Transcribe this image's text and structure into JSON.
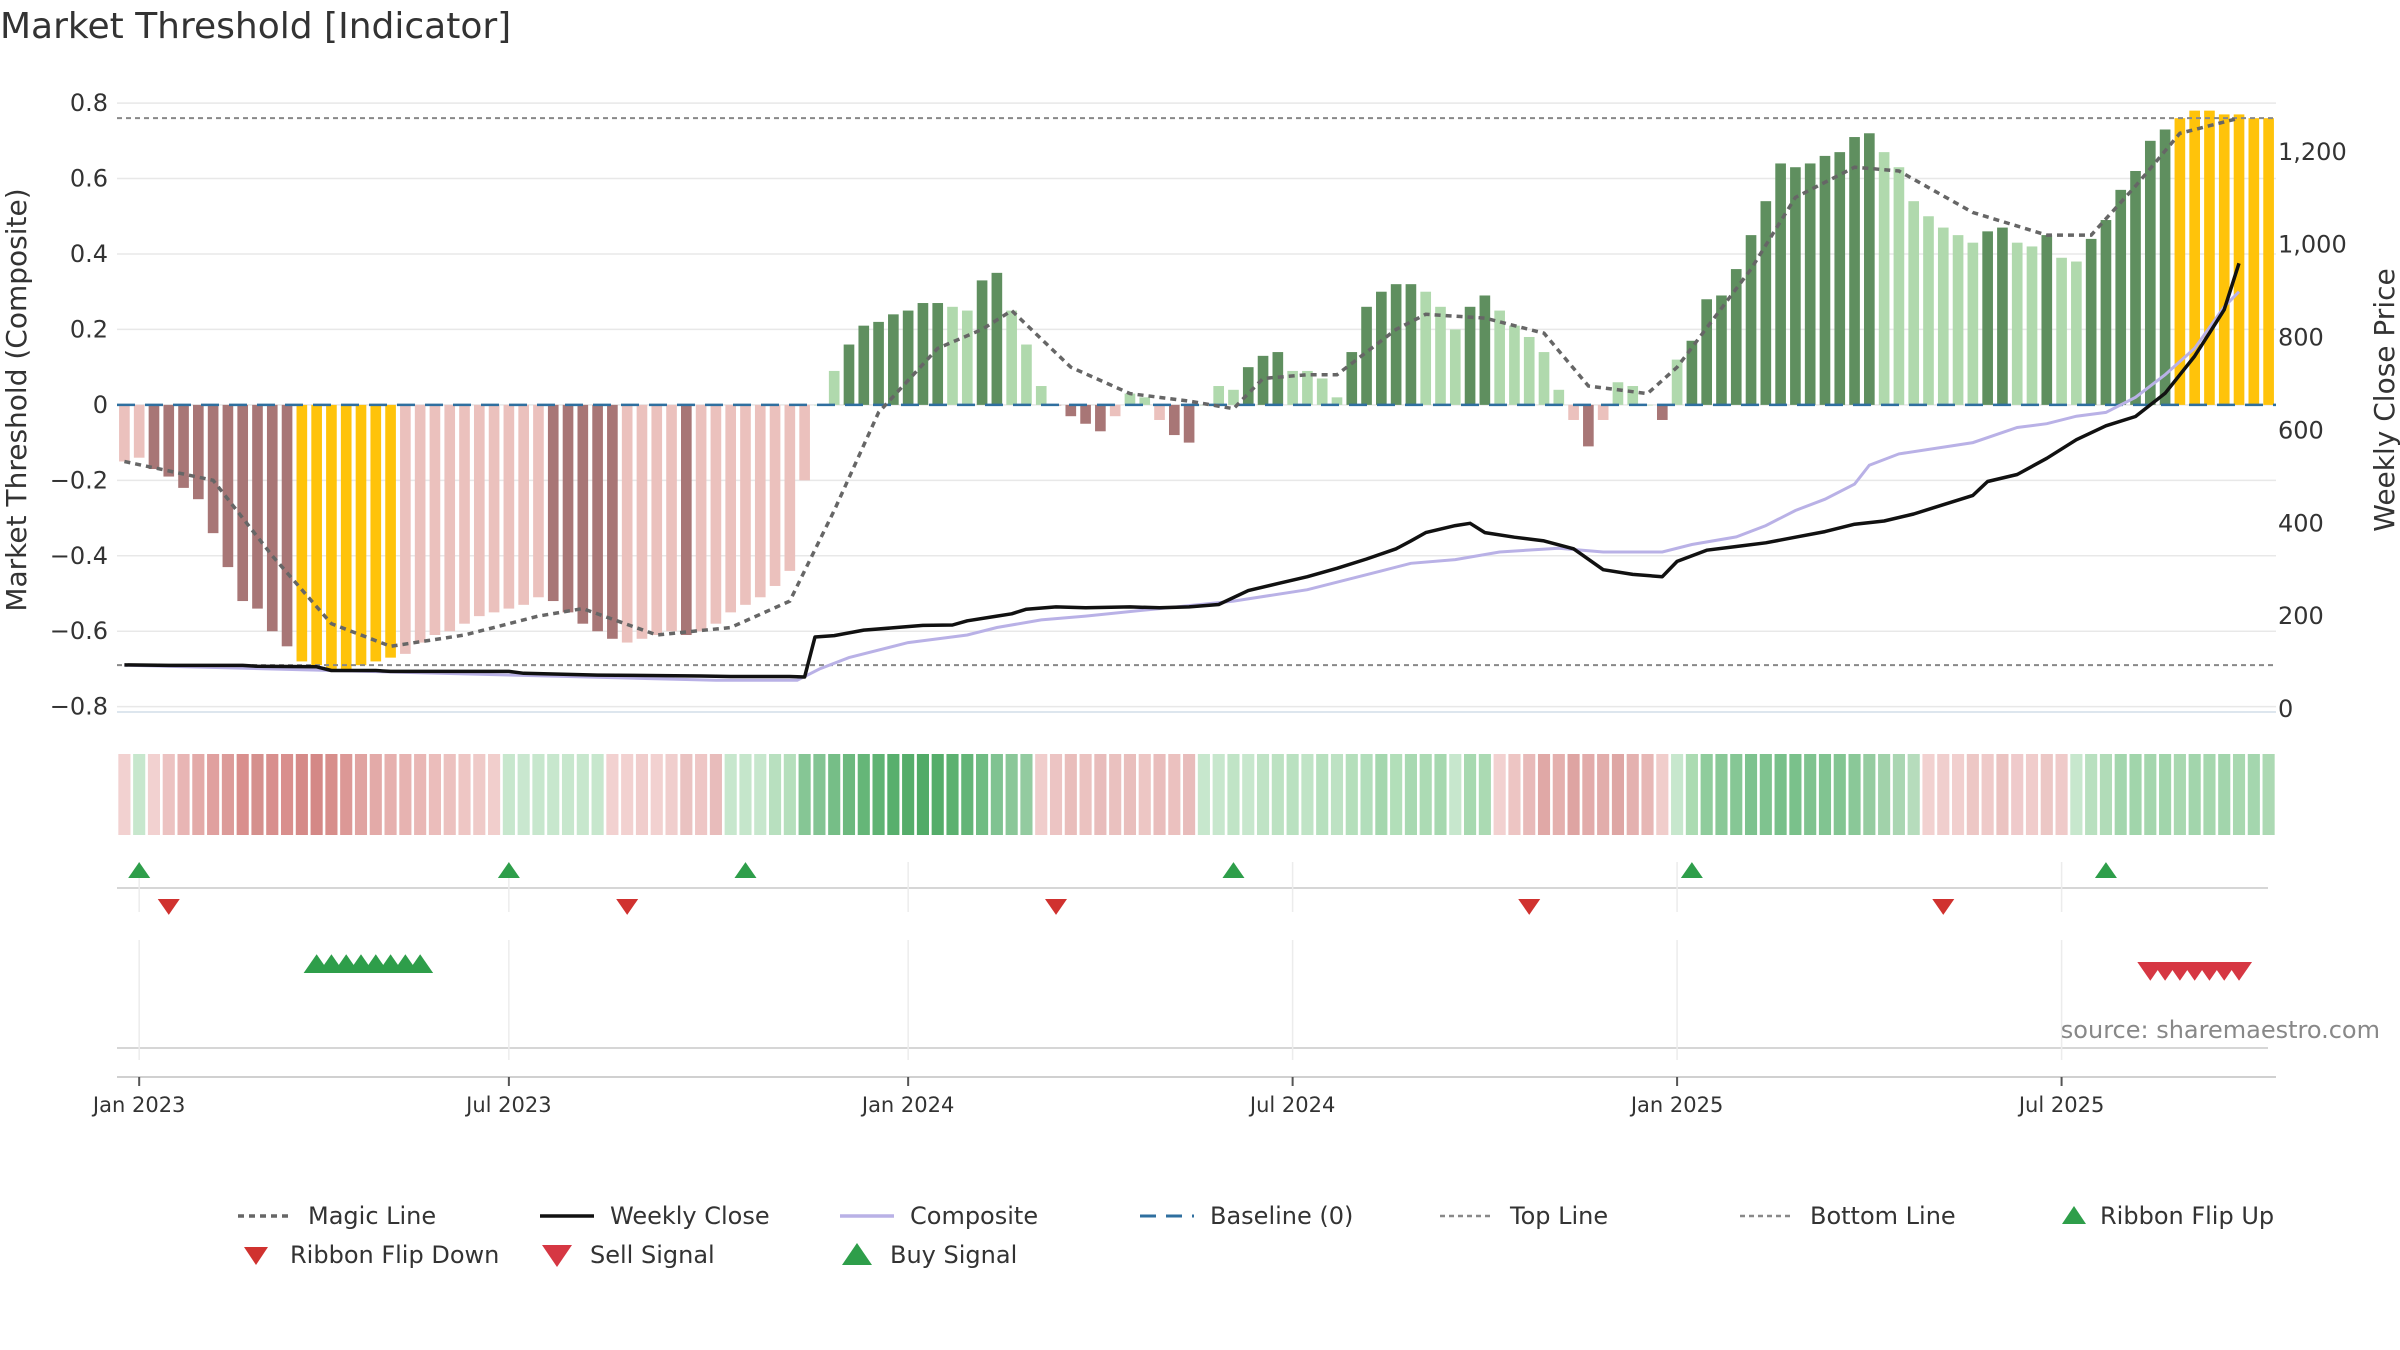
{
  "chart_data": {
    "type": "bar",
    "title": "Market Threshold [Indicator]",
    "ylabel": "Market Threshold (Composite)",
    "y2label": "Weekly Close Price",
    "ylim": [
      -0.83,
      0.84
    ],
    "y2lim": [
      0,
      1260
    ],
    "yticks": [
      0.8,
      0.6,
      0.4,
      0.2,
      0,
      -0.2,
      -0.4,
      -0.6,
      -0.8
    ],
    "ytick_labels": [
      "0.8",
      "0.6",
      "0.4",
      "0.2",
      "0",
      "−0.2",
      "−0.4",
      "−0.6",
      "−0.8"
    ],
    "y2ticks": [
      1200,
      1000,
      800,
      600,
      400,
      200,
      0
    ],
    "y2tick_labels": [
      "1,200",
      "1,000",
      "800",
      "600",
      "400",
      "200",
      "0"
    ],
    "xticks": [
      {
        "week": 1,
        "label": "Jan 2023"
      },
      {
        "week": 26,
        "label": "Jul 2023"
      },
      {
        "week": 53,
        "label": "Jan 2024"
      },
      {
        "week": 79,
        "label": "Jul 2024"
      },
      {
        "week": 105,
        "label": "Jan 2025"
      },
      {
        "week": 131,
        "label": "Jul 2025"
      }
    ],
    "top_line": 0.76,
    "bottom_line": -0.69,
    "baseline": 0,
    "legend_position": "bottom",
    "grid": true,
    "colors": {
      "strong_pos": "#5f8f5f",
      "weak_pos": "#b0d9ad",
      "strong_neg": "#a87676",
      "weak_neg": "#ebc1bd",
      "extreme": "#ffc30a",
      "weekly_close": "#111111",
      "composite": "#b9b1e6",
      "magic": "#666666",
      "baseline": "#2f6f9f",
      "buy": "#2e9e4a",
      "sell": "#d63743"
    },
    "bars": [
      [
        -0.15,
        "weak_neg"
      ],
      [
        -0.14,
        "weak_neg"
      ],
      [
        -0.17,
        "strong_neg"
      ],
      [
        -0.19,
        "strong_neg"
      ],
      [
        -0.22,
        "strong_neg"
      ],
      [
        -0.25,
        "strong_neg"
      ],
      [
        -0.34,
        "strong_neg"
      ],
      [
        -0.43,
        "strong_neg"
      ],
      [
        -0.52,
        "strong_neg"
      ],
      [
        -0.54,
        "strong_neg"
      ],
      [
        -0.6,
        "strong_neg"
      ],
      [
        -0.64,
        "strong_neg"
      ],
      [
        -0.68,
        "extreme"
      ],
      [
        -0.69,
        "extreme"
      ],
      [
        -0.7,
        "extreme"
      ],
      [
        -0.7,
        "extreme"
      ],
      [
        -0.69,
        "extreme"
      ],
      [
        -0.68,
        "extreme"
      ],
      [
        -0.67,
        "extreme"
      ],
      [
        -0.66,
        "weak_neg"
      ],
      [
        -0.63,
        "weak_neg"
      ],
      [
        -0.61,
        "weak_neg"
      ],
      [
        -0.6,
        "weak_neg"
      ],
      [
        -0.58,
        "weak_neg"
      ],
      [
        -0.56,
        "weak_neg"
      ],
      [
        -0.55,
        "weak_neg"
      ],
      [
        -0.54,
        "weak_neg"
      ],
      [
        -0.53,
        "weak_neg"
      ],
      [
        -0.51,
        "weak_neg"
      ],
      [
        -0.52,
        "strong_neg"
      ],
      [
        -0.55,
        "strong_neg"
      ],
      [
        -0.58,
        "strong_neg"
      ],
      [
        -0.6,
        "strong_neg"
      ],
      [
        -0.62,
        "strong_neg"
      ],
      [
        -0.63,
        "weak_neg"
      ],
      [
        -0.62,
        "weak_neg"
      ],
      [
        -0.61,
        "weak_neg"
      ],
      [
        -0.6,
        "weak_neg"
      ],
      [
        -0.61,
        "strong_neg"
      ],
      [
        -0.6,
        "weak_neg"
      ],
      [
        -0.58,
        "weak_neg"
      ],
      [
        -0.55,
        "weak_neg"
      ],
      [
        -0.53,
        "weak_neg"
      ],
      [
        -0.51,
        "weak_neg"
      ],
      [
        -0.48,
        "weak_neg"
      ],
      [
        -0.44,
        "weak_neg"
      ],
      [
        -0.2,
        "weak_neg"
      ],
      [
        0,
        "weak_pos"
      ],
      [
        0.09,
        "weak_pos"
      ],
      [
        0.16,
        "strong_pos"
      ],
      [
        0.21,
        "strong_pos"
      ],
      [
        0.22,
        "strong_pos"
      ],
      [
        0.24,
        "strong_pos"
      ],
      [
        0.25,
        "strong_pos"
      ],
      [
        0.27,
        "strong_pos"
      ],
      [
        0.27,
        "strong_pos"
      ],
      [
        0.26,
        "weak_pos"
      ],
      [
        0.25,
        "weak_pos"
      ],
      [
        0.33,
        "strong_pos"
      ],
      [
        0.35,
        "strong_pos"
      ],
      [
        0.25,
        "weak_pos"
      ],
      [
        0.16,
        "weak_pos"
      ],
      [
        0.05,
        "weak_pos"
      ],
      [
        0,
        "strong_neg"
      ],
      [
        -0.03,
        "strong_neg"
      ],
      [
        -0.05,
        "strong_neg"
      ],
      [
        -0.07,
        "strong_neg"
      ],
      [
        -0.03,
        "weak_neg"
      ],
      [
        0.03,
        "weak_pos"
      ],
      [
        0.02,
        "weak_pos"
      ],
      [
        -0.04,
        "weak_neg"
      ],
      [
        -0.08,
        "strong_neg"
      ],
      [
        -0.1,
        "strong_neg"
      ],
      [
        0,
        "weak_pos"
      ],
      [
        0.05,
        "weak_pos"
      ],
      [
        0.04,
        "weak_pos"
      ],
      [
        0.1,
        "strong_pos"
      ],
      [
        0.13,
        "strong_pos"
      ],
      [
        0.14,
        "strong_pos"
      ],
      [
        0.09,
        "weak_pos"
      ],
      [
        0.09,
        "weak_pos"
      ],
      [
        0.07,
        "weak_pos"
      ],
      [
        0.02,
        "weak_pos"
      ],
      [
        0.14,
        "strong_pos"
      ],
      [
        0.26,
        "strong_pos"
      ],
      [
        0.3,
        "strong_pos"
      ],
      [
        0.32,
        "strong_pos"
      ],
      [
        0.32,
        "strong_pos"
      ],
      [
        0.3,
        "weak_pos"
      ],
      [
        0.26,
        "weak_pos"
      ],
      [
        0.2,
        "weak_pos"
      ],
      [
        0.26,
        "strong_pos"
      ],
      [
        0.29,
        "strong_pos"
      ],
      [
        0.25,
        "weak_pos"
      ],
      [
        0.21,
        "weak_pos"
      ],
      [
        0.18,
        "weak_pos"
      ],
      [
        0.14,
        "weak_pos"
      ],
      [
        0.04,
        "weak_pos"
      ],
      [
        -0.04,
        "weak_neg"
      ],
      [
        -0.11,
        "strong_neg"
      ],
      [
        -0.04,
        "weak_neg"
      ],
      [
        0.06,
        "weak_pos"
      ],
      [
        0.05,
        "weak_pos"
      ],
      [
        0,
        "weak_pos"
      ],
      [
        -0.04,
        "strong_neg"
      ],
      [
        0.12,
        "weak_pos"
      ],
      [
        0.17,
        "strong_pos"
      ],
      [
        0.28,
        "strong_pos"
      ],
      [
        0.29,
        "strong_pos"
      ],
      [
        0.36,
        "strong_pos"
      ],
      [
        0.45,
        "strong_pos"
      ],
      [
        0.54,
        "strong_pos"
      ],
      [
        0.64,
        "strong_pos"
      ],
      [
        0.63,
        "strong_pos"
      ],
      [
        0.64,
        "strong_pos"
      ],
      [
        0.66,
        "strong_pos"
      ],
      [
        0.67,
        "strong_pos"
      ],
      [
        0.71,
        "strong_pos"
      ],
      [
        0.72,
        "strong_pos"
      ],
      [
        0.67,
        "weak_pos"
      ],
      [
        0.63,
        "weak_pos"
      ],
      [
        0.54,
        "weak_pos"
      ],
      [
        0.5,
        "weak_pos"
      ],
      [
        0.47,
        "weak_pos"
      ],
      [
        0.45,
        "weak_pos"
      ],
      [
        0.43,
        "weak_pos"
      ],
      [
        0.46,
        "strong_pos"
      ],
      [
        0.47,
        "strong_pos"
      ],
      [
        0.43,
        "weak_pos"
      ],
      [
        0.42,
        "weak_pos"
      ],
      [
        0.45,
        "strong_pos"
      ],
      [
        0.39,
        "weak_pos"
      ],
      [
        0.38,
        "weak_pos"
      ],
      [
        0.44,
        "strong_pos"
      ],
      [
        0.49,
        "strong_pos"
      ],
      [
        0.57,
        "strong_pos"
      ],
      [
        0.62,
        "strong_pos"
      ],
      [
        0.7,
        "strong_pos"
      ],
      [
        0.73,
        "strong_pos"
      ],
      [
        0.76,
        "extreme"
      ],
      [
        0.78,
        "extreme"
      ],
      [
        0.78,
        "extreme"
      ],
      [
        0.77,
        "extreme"
      ],
      [
        0.77,
        "extreme"
      ],
      [
        0.76,
        "extreme"
      ],
      [
        0.76,
        "extreme"
      ]
    ],
    "magic_line": [
      [
        0,
        -0.15
      ],
      [
        6,
        -0.2
      ],
      [
        10,
        -0.4
      ],
      [
        14,
        -0.58
      ],
      [
        18,
        -0.64
      ],
      [
        23,
        -0.61
      ],
      [
        28,
        -0.56
      ],
      [
        31,
        -0.54
      ],
      [
        36,
        -0.61
      ],
      [
        41,
        -0.59
      ],
      [
        45,
        -0.52
      ],
      [
        48,
        -0.28
      ],
      [
        51,
        -0.02
      ],
      [
        55,
        0.15
      ],
      [
        58,
        0.2
      ],
      [
        60,
        0.25
      ],
      [
        64,
        0.1
      ],
      [
        68,
        0.03
      ],
      [
        72,
        0.01
      ],
      [
        75,
        -0.01
      ],
      [
        77,
        0.07
      ],
      [
        80,
        0.08
      ],
      [
        82,
        0.08
      ],
      [
        86,
        0.2
      ],
      [
        88,
        0.24
      ],
      [
        92,
        0.23
      ],
      [
        96,
        0.19
      ],
      [
        99,
        0.05
      ],
      [
        103,
        0.03
      ],
      [
        105,
        0.1
      ],
      [
        110,
        0.36
      ],
      [
        113,
        0.55
      ],
      [
        117,
        0.63
      ],
      [
        120,
        0.62
      ],
      [
        125,
        0.51
      ],
      [
        130,
        0.45
      ],
      [
        133,
        0.45
      ],
      [
        136,
        0.58
      ],
      [
        139,
        0.72
      ],
      [
        143,
        0.76
      ]
    ],
    "weekly_close": [
      [
        0,
        95
      ],
      [
        3,
        94
      ],
      [
        8,
        94
      ],
      [
        9,
        92
      ],
      [
        13,
        91
      ],
      [
        14,
        83
      ],
      [
        17,
        83
      ],
      [
        18,
        81
      ],
      [
        26,
        81
      ],
      [
        27,
        77
      ],
      [
        32,
        73
      ],
      [
        39,
        71
      ],
      [
        41,
        70
      ],
      [
        45,
        70
      ],
      [
        46,
        69
      ],
      [
        46.7,
        155
      ],
      [
        48,
        158
      ],
      [
        50,
        170
      ],
      [
        52,
        175
      ],
      [
        54,
        180
      ],
      [
        56,
        181
      ],
      [
        57,
        190
      ],
      [
        59,
        200
      ],
      [
        60,
        205
      ],
      [
        61,
        215
      ],
      [
        63,
        220
      ],
      [
        65,
        218
      ],
      [
        68,
        220
      ],
      [
        70,
        218
      ],
      [
        72,
        220
      ],
      [
        74,
        225
      ],
      [
        76,
        255
      ],
      [
        78,
        270
      ],
      [
        80,
        285
      ],
      [
        82,
        303
      ],
      [
        84,
        323
      ],
      [
        86,
        345
      ],
      [
        87,
        362
      ],
      [
        88,
        380
      ],
      [
        90,
        395
      ],
      [
        91,
        400
      ],
      [
        92,
        380
      ],
      [
        94,
        370
      ],
      [
        96,
        362
      ],
      [
        98,
        345
      ],
      [
        100,
        300
      ],
      [
        102,
        290
      ],
      [
        104,
        285
      ],
      [
        105,
        318
      ],
      [
        107,
        342
      ],
      [
        109,
        350
      ],
      [
        111,
        358
      ],
      [
        113,
        370
      ],
      [
        115,
        382
      ],
      [
        117,
        398
      ],
      [
        119,
        405
      ],
      [
        121,
        420
      ],
      [
        123,
        440
      ],
      [
        125,
        460
      ],
      [
        126,
        490
      ],
      [
        128,
        505
      ],
      [
        130,
        540
      ],
      [
        132,
        580
      ],
      [
        134,
        610
      ],
      [
        136,
        630
      ],
      [
        137,
        655
      ],
      [
        138,
        680
      ],
      [
        139,
        720
      ],
      [
        140,
        760
      ],
      [
        141,
        810
      ],
      [
        142,
        860
      ],
      [
        143,
        960
      ]
    ],
    "composite_line": [
      [
        0,
        -0.69
      ],
      [
        10,
        -0.7
      ],
      [
        20,
        -0.71
      ],
      [
        30,
        -0.72
      ],
      [
        40,
        -0.73
      ],
      [
        45.5,
        -0.73
      ],
      [
        47,
        -0.7
      ],
      [
        49,
        -0.67
      ],
      [
        53,
        -0.63
      ],
      [
        57,
        -0.61
      ],
      [
        59,
        -0.59
      ],
      [
        62,
        -0.57
      ],
      [
        65,
        -0.56
      ],
      [
        70,
        -0.54
      ],
      [
        75,
        -0.52
      ],
      [
        80,
        -0.49
      ],
      [
        85,
        -0.44
      ],
      [
        87,
        -0.42
      ],
      [
        90,
        -0.41
      ],
      [
        93,
        -0.39
      ],
      [
        97,
        -0.38
      ],
      [
        100,
        -0.39
      ],
      [
        104,
        -0.39
      ],
      [
        106,
        -0.37
      ],
      [
        109,
        -0.35
      ],
      [
        111,
        -0.32
      ],
      [
        113,
        -0.28
      ],
      [
        115,
        -0.25
      ],
      [
        117,
        -0.21
      ],
      [
        118,
        -0.16
      ],
      [
        120,
        -0.13
      ],
      [
        125,
        -0.1
      ],
      [
        128,
        -0.06
      ],
      [
        130,
        -0.05
      ],
      [
        132,
        -0.03
      ],
      [
        134,
        -0.02
      ],
      [
        136,
        0.02
      ],
      [
        138,
        0.08
      ],
      [
        140,
        0.15
      ],
      [
        142,
        0.26
      ],
      [
        143,
        0.3
      ]
    ],
    "ribbon": [
      "#f2d1d0",
      "#c7e7cd",
      "#f2d1d0",
      "#ecc2c1",
      "#e8b5b4",
      "#e3aaa8",
      "#e0a09f",
      "#dc9b99",
      "#d98f8d",
      "#d5908d",
      "#d88f8d",
      "#d98f8d",
      "#d58a88",
      "#d48886",
      "#d78e8b",
      "#dc9896",
      "#e0a3a1",
      "#e3aaa8",
      "#e6b0ae",
      "#e7b3b1",
      "#e9b7b5",
      "#ebbdbb",
      "#ecc1bf",
      "#eec6c4",
      "#efcac8",
      "#f1cecc",
      "#c7e7cd",
      "#c9e7cf",
      "#c7e7cd",
      "#c7e7cd",
      "#c7e7cd",
      "#c7e7cd",
      "#c7e7cd",
      "#f2d1d0",
      "#f2d1d0",
      "#f0cdcc",
      "#f2d1d0",
      "#f0cecd",
      "#eac2c1",
      "#eec6c5",
      "#e8bcbb",
      "#c7e7cd",
      "#c5e6cb",
      "#c7e7cd",
      "#b8e0bf",
      "#b5dfbc",
      "#86c695",
      "#83c493",
      "#76be87",
      "#6cb97e",
      "#65b678",
      "#5fb373",
      "#58af6d",
      "#55ad6a",
      "#51ab67",
      "#55ad6a",
      "#5cb170",
      "#63b577",
      "#70bc83",
      "#80c391",
      "#8ac798",
      "#93cba0",
      "#f0cdcc",
      "#ecc4c3",
      "#e9bdbb",
      "#ebc2c0",
      "#e8bcbb",
      "#eac1bf",
      "#e9bebc",
      "#edc6c4",
      "#e9bdbc",
      "#ebc1bf",
      "#e8bcbb",
      "#c7e7cd",
      "#c7e7cd",
      "#c0e4c6",
      "#c7e7cd",
      "#bfe3c5",
      "#bce2c2",
      "#b9e1c0",
      "#c0e4c6",
      "#b7e0be",
      "#bde2c3",
      "#b4dfbb",
      "#b2debb",
      "#a4d7ae",
      "#b2dfb9",
      "#a8d9b1",
      "#acdbb4",
      "#a6d8af",
      "#c7e7cd",
      "#a7d9b0",
      "#abdab3",
      "#f2d1d0",
      "#edc5c3",
      "#e8bab9",
      "#e0a8a6",
      "#e4b0ae",
      "#dea4a2",
      "#e2abaa",
      "#e2adab",
      "#dea6a4",
      "#e4b1af",
      "#e7b7b5",
      "#f0cdcb",
      "#c7e7cd",
      "#abdbb2",
      "#8fcc9c",
      "#89c897",
      "#86c795",
      "#7dc28e",
      "#7fc38f",
      "#78c08a",
      "#7ac18b",
      "#7fc38f",
      "#81c491",
      "#83c592",
      "#8ac898",
      "#95cca0",
      "#a1d2aa",
      "#aad6b2",
      "#b6dcbc",
      "#f2d1d0",
      "#f0cecd",
      "#f1cfce",
      "#edc7c5",
      "#efcac9",
      "#ebc3c1",
      "#efcacb",
      "#f0cccb",
      "#ecc7c5",
      "#efcac9",
      "#c7e7cd",
      "#b8e0bf",
      "#b1dcb8",
      "#a3d6ad",
      "#a1d5ab",
      "#a4d6ad",
      "#a1d5ab",
      "#a8d8b0",
      "#a2d5ac",
      "#a5d7ae",
      "#a2d5ac",
      "#a8d8b0",
      "#a4d6ae",
      "#acd9b3"
    ],
    "ribbon_flip_up": [
      1,
      26,
      42,
      75,
      106,
      134
    ],
    "ribbon_flip_down": [
      3,
      34,
      63,
      95,
      123
    ],
    "buy_signal_weeks": [
      13,
      14,
      15,
      16,
      17,
      18,
      19,
      20
    ],
    "sell_signal_weeks": [
      137,
      138,
      139,
      140,
      141,
      142,
      143
    ],
    "legend": [
      {
        "key": "magic",
        "label": "Magic Line"
      },
      {
        "key": "weekly_close",
        "label": "Weekly Close"
      },
      {
        "key": "composite",
        "label": "Composite"
      },
      {
        "key": "baseline",
        "label": "Baseline (0)"
      },
      {
        "key": "top",
        "label": "Top Line"
      },
      {
        "key": "bottom",
        "label": "Bottom Line"
      },
      {
        "key": "flip_up",
        "label": "Ribbon Flip Up"
      },
      {
        "key": "flip_down",
        "label": "Ribbon Flip Down"
      },
      {
        "key": "sell",
        "label": "Sell Signal"
      },
      {
        "key": "buy",
        "label": "Buy Signal"
      }
    ],
    "source": "source: sharemaestro.com"
  }
}
